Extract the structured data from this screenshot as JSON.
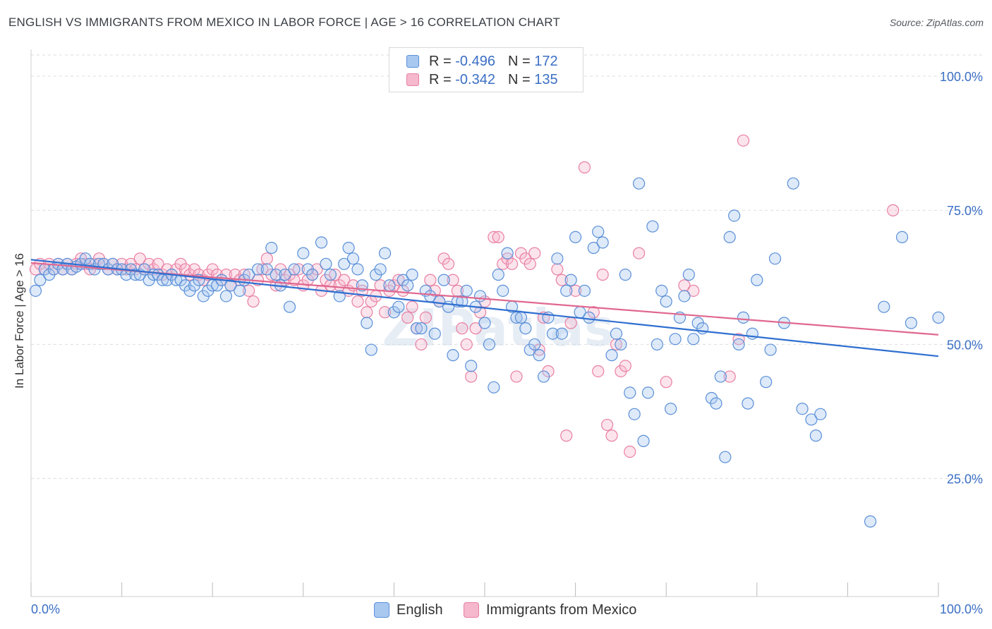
{
  "header": {
    "title": "ENGLISH VS IMMIGRANTS FROM MEXICO IN LABOR FORCE | AGE > 16 CORRELATION CHART",
    "source": "Source: ZipAtlas.com"
  },
  "watermark": "ZIPatlas",
  "legend": {
    "rows": [
      {
        "r_label": "R =",
        "r_value": "-0.496",
        "n_label": "N =",
        "n_value": "172"
      },
      {
        "r_label": "R =",
        "r_value": "-0.342",
        "n_label": "N =",
        "n_value": "135"
      }
    ]
  },
  "colors": {
    "blue_fill": "#a9c8f0",
    "blue_stroke": "#5a8fd8",
    "blue_line": "#2f6fd0",
    "pink_fill": "#f6b8cc",
    "pink_stroke": "#e87fa2",
    "pink_line": "#e06890",
    "axis_label": "#3b6fc4",
    "grid": "#dddddd"
  },
  "chart_data": {
    "type": "scatter",
    "ylabel": "In Labor Force | Age > 16",
    "x_tick_labels": [
      "0.0%",
      "100.0%"
    ],
    "y_tick_labels": [
      "100.0%",
      "75.0%",
      "50.0%",
      "25.0%"
    ],
    "xlim": [
      0,
      100
    ],
    "ylim": [
      3,
      105
    ],
    "grid": "horizontal dashed",
    "legend_position": "top-center",
    "series": [
      {
        "name": "English",
        "color": "#5a8fd8",
        "trend": {
          "x": [
            0,
            100
          ],
          "y": [
            65.8,
            47.8
          ]
        },
        "points": [
          [
            0.5,
            60
          ],
          [
            1,
            62
          ],
          [
            1.5,
            64
          ],
          [
            2,
            63
          ],
          [
            2.5,
            64
          ],
          [
            3,
            65
          ],
          [
            3.5,
            64
          ],
          [
            4,
            65
          ],
          [
            4.5,
            64
          ],
          [
            5,
            64.5
          ],
          [
            5.5,
            65
          ],
          [
            6,
            66
          ],
          [
            6.5,
            65
          ],
          [
            7,
            64
          ],
          [
            7.5,
            65
          ],
          [
            8,
            65
          ],
          [
            8.5,
            64
          ],
          [
            9,
            65
          ],
          [
            9.5,
            64
          ],
          [
            10,
            64
          ],
          [
            10.5,
            63
          ],
          [
            11,
            64
          ],
          [
            11.5,
            63
          ],
          [
            12,
            63
          ],
          [
            12.5,
            64
          ],
          [
            13,
            62
          ],
          [
            13.5,
            63
          ],
          [
            14,
            63
          ],
          [
            14.5,
            62
          ],
          [
            15,
            62
          ],
          [
            15.5,
            63
          ],
          [
            16,
            62
          ],
          [
            16.5,
            62
          ],
          [
            17,
            61
          ],
          [
            17.5,
            60
          ],
          [
            18,
            61
          ],
          [
            18.5,
            62
          ],
          [
            19,
            59
          ],
          [
            19.5,
            60
          ],
          [
            20,
            61
          ],
          [
            20.5,
            61
          ],
          [
            21,
            62
          ],
          [
            21.5,
            59
          ],
          [
            22,
            61
          ],
          [
            23,
            60
          ],
          [
            23.5,
            62
          ],
          [
            24,
            63
          ],
          [
            25,
            64
          ],
          [
            26,
            64
          ],
          [
            26.5,
            68
          ],
          [
            27,
            63
          ],
          [
            27.5,
            61
          ],
          [
            28,
            63
          ],
          [
            28.5,
            57
          ],
          [
            29,
            64
          ],
          [
            30,
            67
          ],
          [
            30.5,
            64
          ],
          [
            31,
            63
          ],
          [
            32,
            69
          ],
          [
            32.5,
            65
          ],
          [
            33,
            63
          ],
          [
            34,
            59
          ],
          [
            34.5,
            65
          ],
          [
            35,
            68
          ],
          [
            35.5,
            66
          ],
          [
            36,
            64
          ],
          [
            36.5,
            61
          ],
          [
            37,
            54
          ],
          [
            37.5,
            49
          ],
          [
            38,
            63
          ],
          [
            38.5,
            64
          ],
          [
            39,
            67
          ],
          [
            39.5,
            61
          ],
          [
            40,
            56
          ],
          [
            40.5,
            57
          ],
          [
            41,
            62
          ],
          [
            41.5,
            61
          ],
          [
            42,
            63
          ],
          [
            42.5,
            53
          ],
          [
            43,
            53
          ],
          [
            43.5,
            60
          ],
          [
            44,
            59
          ],
          [
            44.5,
            52
          ],
          [
            45,
            58
          ],
          [
            45.5,
            62
          ],
          [
            46,
            57
          ],
          [
            46.5,
            48
          ],
          [
            47,
            58
          ],
          [
            47.5,
            58
          ],
          [
            48,
            60
          ],
          [
            48.5,
            46
          ],
          [
            49,
            57
          ],
          [
            49.5,
            59
          ],
          [
            50,
            54
          ],
          [
            50.5,
            50
          ],
          [
            51,
            42
          ],
          [
            51.5,
            63
          ],
          [
            52,
            60
          ],
          [
            52.5,
            67
          ],
          [
            53,
            57
          ],
          [
            53.5,
            55
          ],
          [
            54,
            55
          ],
          [
            54.5,
            53
          ],
          [
            55,
            49
          ],
          [
            55.5,
            50
          ],
          [
            56,
            48
          ],
          [
            56.5,
            44
          ],
          [
            57,
            55
          ],
          [
            57.5,
            52
          ],
          [
            58,
            66
          ],
          [
            58.5,
            52
          ],
          [
            59,
            60
          ],
          [
            59.5,
            62
          ],
          [
            60,
            70
          ],
          [
            60.5,
            56
          ],
          [
            61,
            60
          ],
          [
            61.5,
            55
          ],
          [
            62,
            68
          ],
          [
            62.5,
            71
          ],
          [
            63,
            69
          ],
          [
            64,
            48
          ],
          [
            64.5,
            52
          ],
          [
            65,
            50
          ],
          [
            65.5,
            63
          ],
          [
            66,
            41
          ],
          [
            66.5,
            37
          ],
          [
            67,
            80
          ],
          [
            67.5,
            32
          ],
          [
            68,
            41
          ],
          [
            68.5,
            72
          ],
          [
            69,
            50
          ],
          [
            69.5,
            60
          ],
          [
            70,
            58
          ],
          [
            70.5,
            38
          ],
          [
            71,
            51
          ],
          [
            71.5,
            55
          ],
          [
            72,
            59
          ],
          [
            72.5,
            63
          ],
          [
            73,
            51
          ],
          [
            73.5,
            54
          ],
          [
            74,
            53
          ],
          [
            75,
            40
          ],
          [
            75.5,
            39
          ],
          [
            76,
            44
          ],
          [
            76.5,
            29
          ],
          [
            77,
            70
          ],
          [
            77.5,
            74
          ],
          [
            78,
            50
          ],
          [
            78.5,
            55
          ],
          [
            79,
            39
          ],
          [
            79.5,
            52
          ],
          [
            80,
            62
          ],
          [
            81,
            43
          ],
          [
            81.5,
            49
          ],
          [
            82,
            66
          ],
          [
            83,
            54
          ],
          [
            84,
            80
          ],
          [
            85,
            38
          ],
          [
            86,
            36
          ],
          [
            86.5,
            33
          ],
          [
            87,
            37
          ],
          [
            92.5,
            17
          ],
          [
            94,
            57
          ],
          [
            96,
            70
          ],
          [
            97,
            54
          ],
          [
            100,
            55
          ]
        ]
      },
      {
        "name": "Immigrants from Mexico",
        "color": "#e87fa2",
        "trend": {
          "x": [
            0,
            100
          ],
          "y": [
            65.2,
            51.8
          ]
        },
        "points": [
          [
            0.5,
            64
          ],
          [
            1,
            65
          ],
          [
            1.5,
            64
          ],
          [
            2,
            65
          ],
          [
            2.5,
            64
          ],
          [
            3,
            65
          ],
          [
            3.5,
            64
          ],
          [
            4,
            65
          ],
          [
            4.5,
            64
          ],
          [
            5,
            65
          ],
          [
            5.5,
            66
          ],
          [
            6,
            65
          ],
          [
            6.5,
            64
          ],
          [
            7,
            65
          ],
          [
            7.5,
            66
          ],
          [
            8,
            65
          ],
          [
            8.5,
            64
          ],
          [
            9,
            65
          ],
          [
            9.5,
            64
          ],
          [
            10,
            65
          ],
          [
            10.5,
            64
          ],
          [
            11,
            65
          ],
          [
            11.5,
            64
          ],
          [
            12,
            66
          ],
          [
            12.5,
            64
          ],
          [
            13,
            65
          ],
          [
            13.5,
            64
          ],
          [
            14,
            65
          ],
          [
            14.5,
            63
          ],
          [
            15,
            64
          ],
          [
            15.5,
            63
          ],
          [
            16,
            64
          ],
          [
            16.5,
            65
          ],
          [
            17,
            64
          ],
          [
            17.5,
            63
          ],
          [
            18,
            64
          ],
          [
            18.5,
            63
          ],
          [
            19,
            62
          ],
          [
            19.5,
            63
          ],
          [
            20,
            64
          ],
          [
            20.5,
            63
          ],
          [
            21,
            62
          ],
          [
            21.5,
            63
          ],
          [
            22,
            61
          ],
          [
            22.5,
            63
          ],
          [
            23,
            62
          ],
          [
            23.5,
            63
          ],
          [
            24,
            60
          ],
          [
            24.5,
            58
          ],
          [
            25,
            62
          ],
          [
            25.5,
            64
          ],
          [
            26,
            66
          ],
          [
            26.5,
            63
          ],
          [
            27,
            61
          ],
          [
            27.5,
            64
          ],
          [
            28,
            62
          ],
          [
            28.5,
            63
          ],
          [
            29,
            62
          ],
          [
            29.5,
            64
          ],
          [
            30,
            61
          ],
          [
            30.5,
            62
          ],
          [
            31,
            63
          ],
          [
            31.5,
            64
          ],
          [
            32,
            60
          ],
          [
            32.5,
            62
          ],
          [
            33,
            61
          ],
          [
            33.5,
            63
          ],
          [
            34,
            61
          ],
          [
            34.5,
            62
          ],
          [
            35,
            60
          ],
          [
            35.5,
            61
          ],
          [
            36,
            58
          ],
          [
            36.5,
            60
          ],
          [
            37,
            56
          ],
          [
            37.5,
            58
          ],
          [
            38,
            59
          ],
          [
            38.5,
            61
          ],
          [
            39,
            56
          ],
          [
            39.5,
            60
          ],
          [
            40,
            61
          ],
          [
            40.5,
            62
          ],
          [
            41,
            60
          ],
          [
            41.5,
            55
          ],
          [
            42,
            57
          ],
          [
            42.5,
            53
          ],
          [
            43,
            50
          ],
          [
            43.5,
            55
          ],
          [
            44,
            62
          ],
          [
            44.5,
            60
          ],
          [
            45,
            58
          ],
          [
            45.5,
            66
          ],
          [
            46,
            65
          ],
          [
            46.5,
            62
          ],
          [
            47,
            60
          ],
          [
            47.5,
            53
          ],
          [
            48,
            50
          ],
          [
            48.5,
            44
          ],
          [
            49,
            53
          ],
          [
            49.5,
            56
          ],
          [
            50,
            58
          ],
          [
            51,
            70
          ],
          [
            51.5,
            70
          ],
          [
            52,
            65
          ],
          [
            52.5,
            66
          ],
          [
            53,
            65
          ],
          [
            53.5,
            44
          ],
          [
            54,
            67
          ],
          [
            54.5,
            66
          ],
          [
            55,
            65
          ],
          [
            55.5,
            67
          ],
          [
            56,
            49
          ],
          [
            56.5,
            55
          ],
          [
            57,
            45
          ],
          [
            58,
            64
          ],
          [
            58.5,
            62
          ],
          [
            59,
            33
          ],
          [
            59.5,
            54
          ],
          [
            60,
            60
          ],
          [
            61,
            83
          ],
          [
            62,
            56
          ],
          [
            62.5,
            45
          ],
          [
            63,
            63
          ],
          [
            63.5,
            35
          ],
          [
            64,
            33
          ],
          [
            64.5,
            50
          ],
          [
            65,
            45
          ],
          [
            65.5,
            46
          ],
          [
            66,
            30
          ],
          [
            67,
            67
          ],
          [
            70,
            43
          ],
          [
            72,
            61
          ],
          [
            73,
            60
          ],
          [
            77,
            44
          ],
          [
            78,
            51
          ],
          [
            78.5,
            88
          ],
          [
            95,
            75
          ]
        ]
      }
    ]
  }
}
